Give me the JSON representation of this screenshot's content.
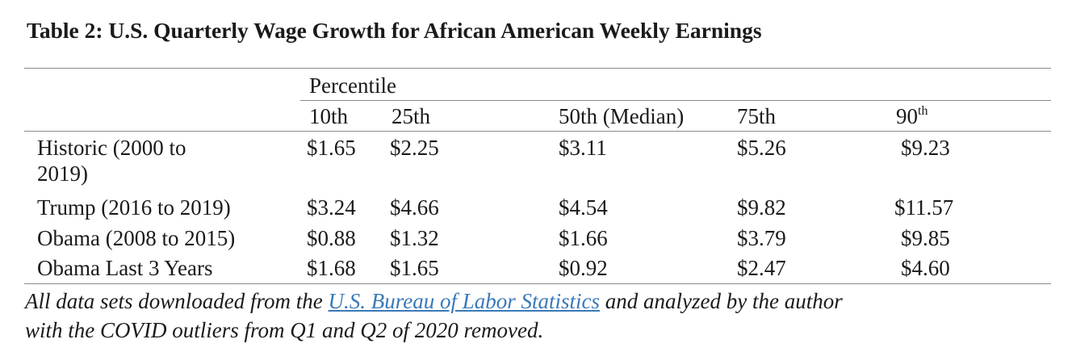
{
  "title": "Table 2: U.S. Quarterly Wage Growth for African American Weekly Earnings",
  "percentile_label": "Percentile",
  "columns": {
    "p10": "10th",
    "p25": "25th",
    "p50": "50th (Median)",
    "p75": "75th",
    "p90_base": "90",
    "p90_sup": "th"
  },
  "rows": [
    {
      "label_line1": "Historic (2000 to",
      "label_line2": "2019)",
      "p10": "$1.65",
      "p25": "$2.25",
      "p50": "$3.11",
      "p75": "$5.26",
      "p90": "$9.23"
    },
    {
      "label_line1": "Trump (2016 to 2019)",
      "p10": "$3.24",
      "p25": "$4.66",
      "p50": "$4.54",
      "p75": "$9.82",
      "p90": "$11.57"
    },
    {
      "label_line1": "Obama (2008 to 2015)",
      "p10": "$0.88",
      "p25": "$1.32",
      "p50": "$1.66",
      "p75": "$3.79",
      "p90": "$9.85"
    },
    {
      "label_line1": "Obama Last 3 Years",
      "p10": "$1.68",
      "p25": "$1.65",
      "p50": "$0.92",
      "p75": "$2.47",
      "p90": "$4.60"
    }
  ],
  "note": {
    "before_link": "All data sets downloaded from the ",
    "link_text": "U.S. Bureau of Labor Statistics",
    "after_link_line1": " and analyzed by the author",
    "line2": "with the COVID outliers from Q1 and Q2 of 2020 removed."
  },
  "colors": {
    "link": "#3a79b8",
    "rule": "#8a8a8a"
  }
}
